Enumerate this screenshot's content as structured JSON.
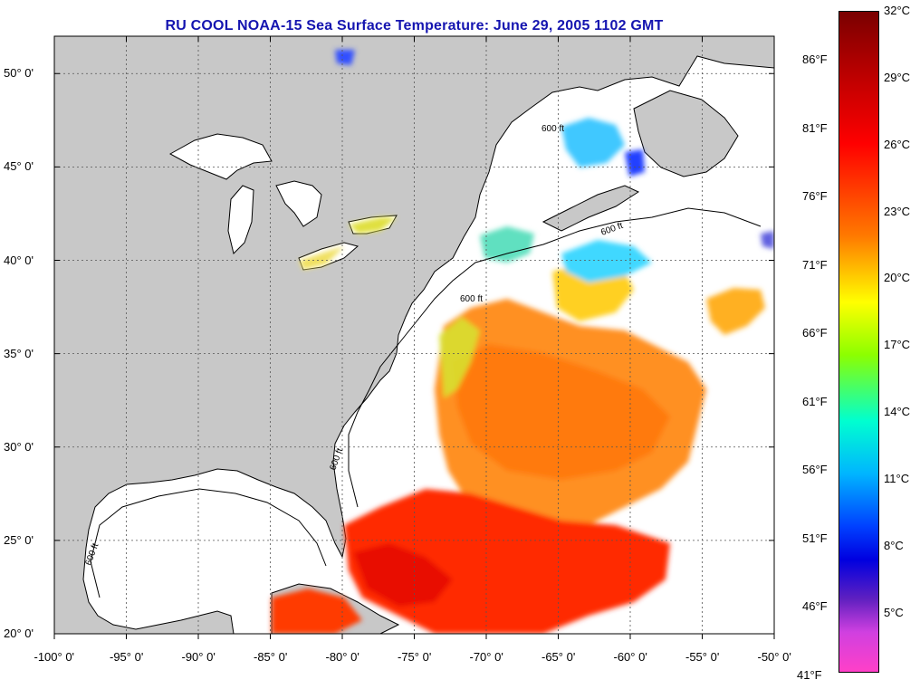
{
  "title": "RU COOL  NOAA-15  Sea Surface Temperature:  June 29, 2005 1102 GMT",
  "map": {
    "lon_range": [
      -100,
      -50
    ],
    "lat_range": [
      20,
      52
    ],
    "lon_ticks": [
      {
        "value": -100,
        "label": "-100° 0'"
      },
      {
        "value": -95,
        "label": "-95° 0'"
      },
      {
        "value": -90,
        "label": "-90° 0'"
      },
      {
        "value": -85,
        "label": "-85° 0'"
      },
      {
        "value": -80,
        "label": "-80° 0'"
      },
      {
        "value": -75,
        "label": "-75° 0'"
      },
      {
        "value": -70,
        "label": "-70° 0'"
      },
      {
        "value": -65,
        "label": "-65° 0'"
      },
      {
        "value": -60,
        "label": "-60° 0'"
      },
      {
        "value": -55,
        "label": "-55° 0'"
      },
      {
        "value": -50,
        "label": "-50° 0'"
      }
    ],
    "lat_ticks": [
      {
        "value": 50,
        "label": "50° 0'"
      },
      {
        "value": 45,
        "label": "45° 0'"
      },
      {
        "value": 40,
        "label": "40° 0'"
      },
      {
        "value": 35,
        "label": "35° 0'"
      },
      {
        "value": 30,
        "label": "30° 0'"
      },
      {
        "value": 25,
        "label": "25° 0'"
      },
      {
        "value": 20,
        "label": "20° 0'"
      }
    ],
    "contour_label": "600 ft",
    "colors": {
      "land": "#c8c8c8",
      "ocean": "#ffffff",
      "hot": "#ff2000",
      "warm": "#ff8a10",
      "mild": "#ffe020",
      "cool": "#40d8ff",
      "cold": "#2040ff"
    }
  },
  "colorbar": {
    "fahrenheit": [
      "86°F",
      "81°F",
      "76°F",
      "71°F",
      "66°F",
      "61°F",
      "56°F",
      "51°F",
      "46°F",
      "41°F"
    ],
    "celsius": [
      "32°C",
      "29°C",
      "26°C",
      "23°C",
      "20°C",
      "17°C",
      "14°C",
      "11°C",
      "8°C",
      "5°C"
    ]
  }
}
